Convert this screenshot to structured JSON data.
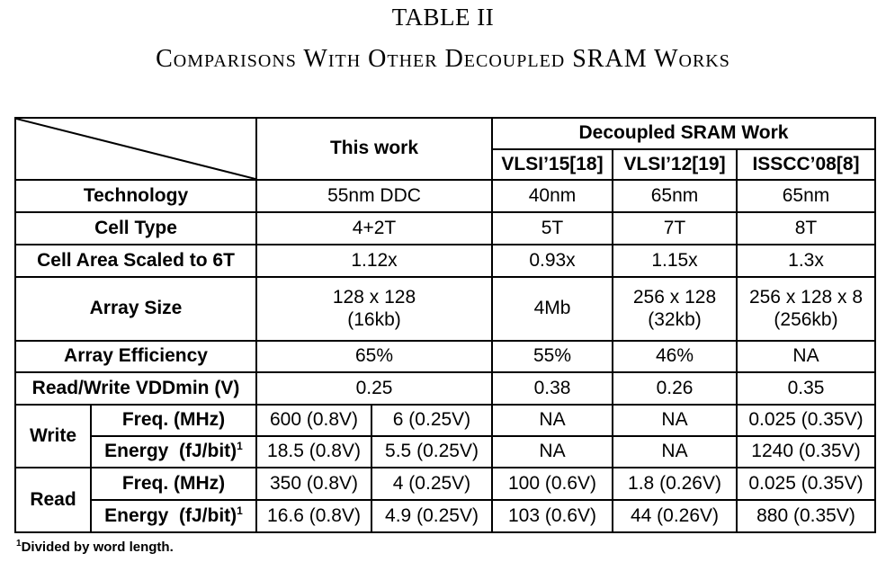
{
  "title": "TABLE II",
  "subtitle": "Comparisons With Other Decoupled SRAM Works",
  "header": {
    "this_work": "This work",
    "group": "Decoupled SRAM Work",
    "cols": [
      "VLSI’15[18]",
      "VLSI’12[19]",
      "ISSCC’08[8]"
    ]
  },
  "rows": {
    "technology": {
      "label": "Technology",
      "this": "55nm DDC",
      "c1": "40nm",
      "c2": "65nm",
      "c3": "65nm"
    },
    "cell_type": {
      "label": "Cell Type",
      "this": "4+2T",
      "c1": "5T",
      "c2": "7T",
      "c3": "8T"
    },
    "cell_area": {
      "label": "Cell Area Scaled to 6T",
      "this": "1.12x",
      "c1": "0.93x",
      "c2": "1.15x",
      "c3": "1.3x"
    },
    "array_size": {
      "label": "Array Size",
      "this_l1": "128 x 128",
      "this_l2": "(16kb)",
      "c1": "4Mb",
      "c2_l1": "256 x 128",
      "c2_l2": "(32kb)",
      "c3_l1": "256 x 128 x 8",
      "c3_l2": "(256kb)"
    },
    "array_eff": {
      "label": "Array Efficiency",
      "this": "65%",
      "c1": "55%",
      "c2": "46%",
      "c3": "NA"
    },
    "vddmin": {
      "label": "Read/Write VDDmin (V)",
      "this": "0.25",
      "c1": "0.38",
      "c2": "0.26",
      "c3": "0.35"
    },
    "write": {
      "label": "Write",
      "freq": {
        "label": "Freq. (MHz)",
        "this_a": "600 (0.8V)",
        "this_b": "6 (0.25V)",
        "c1": "NA",
        "c2": "NA",
        "c3": "0.025 (0.35V)"
      },
      "energy": {
        "label": "Energy  (fJ/bit)",
        "sup": "1",
        "this_a": "18.5 (0.8V)",
        "this_b": "5.5 (0.25V)",
        "c1": "NA",
        "c2": "NA",
        "c3": "1240 (0.35V)"
      }
    },
    "read": {
      "label": "Read",
      "freq": {
        "label": "Freq. (MHz)",
        "this_a": "350 (0.8V)",
        "this_b": "4 (0.25V)",
        "c1": "100 (0.6V)",
        "c2": "1.8 (0.26V)",
        "c3": "0.025 (0.35V)"
      },
      "energy": {
        "label": "Energy  (fJ/bit)",
        "sup": "1",
        "this_a": "16.6 (0.8V)",
        "this_b": "4.9 (0.25V)",
        "c1": "103 (0.6V)",
        "c2": "44 (0.26V)",
        "c3": "880 (0.35V)"
      }
    }
  },
  "footnote": {
    "mark": "1",
    "text": "Divided by word length."
  }
}
